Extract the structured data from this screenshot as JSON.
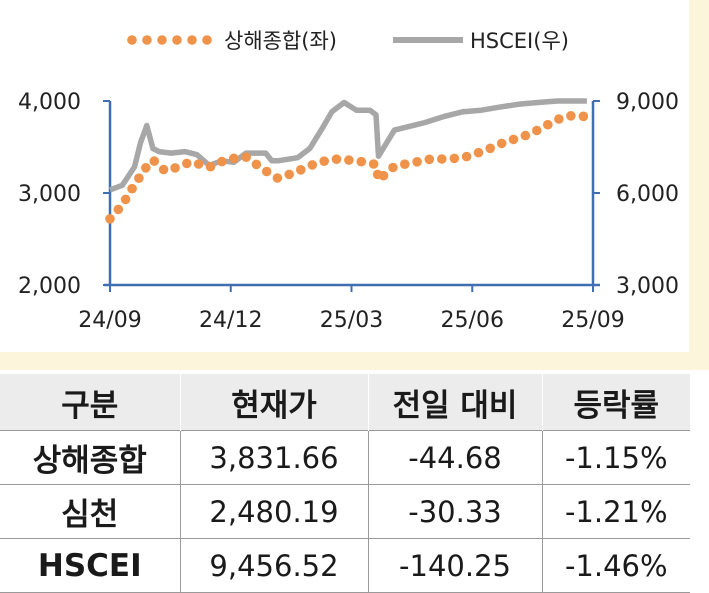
{
  "chart_data": {
    "type": "line",
    "legend": [
      "상해종합(좌)",
      "HSCEI(우)"
    ],
    "legend_position": "top",
    "x_tick_labels": [
      "24/09",
      "24/12",
      "25/03",
      "25/06",
      "25/09"
    ],
    "y_left_ticks": [
      "2,000",
      "3,000",
      "4,000"
    ],
    "y_right_ticks": [
      "3,000",
      "6,000",
      "9,000"
    ],
    "y_left_range": [
      2000,
      4000
    ],
    "y_right_range": [
      3000,
      9000
    ],
    "x_range": [
      "2024-09-01",
      "2025-09-30"
    ],
    "grid": false,
    "series": [
      {
        "name": "상해종합(좌)",
        "axis": "left",
        "style": "dotted",
        "color": "#f0934a",
        "x": [
          "2024-09-01",
          "2024-09-11",
          "2024-09-21",
          "2024-10-01",
          "2024-10-06",
          "2024-10-16",
          "2024-10-26",
          "2024-11-06",
          "2024-11-21",
          "2024-12-06",
          "2024-12-21",
          "2025-01-06",
          "2025-01-16",
          "2025-01-31",
          "2025-02-10",
          "2025-02-20",
          "2025-03-06",
          "2025-03-21",
          "2025-04-06",
          "2025-04-08",
          "2025-04-21",
          "2025-05-06",
          "2025-05-21",
          "2025-06-06",
          "2025-06-21",
          "2025-07-01",
          "2025-07-11",
          "2025-07-21",
          "2025-08-01",
          "2025-08-11",
          "2025-08-21",
          "2025-09-01",
          "2025-09-11",
          "2025-09-25"
        ],
        "y": [
          2720,
          2870,
          3090,
          3290,
          3360,
          3240,
          3280,
          3340,
          3280,
          3370,
          3390,
          3240,
          3160,
          3230,
          3290,
          3340,
          3370,
          3350,
          3310,
          3140,
          3290,
          3330,
          3370,
          3370,
          3400,
          3450,
          3500,
          3560,
          3600,
          3650,
          3720,
          3800,
          3840,
          3831.66
        ]
      },
      {
        "name": "HSCEI(우)",
        "axis": "right",
        "style": "solid",
        "color": "#a7a7a7",
        "x": [
          "2024-09-01",
          "2024-09-11",
          "2024-09-21",
          "2024-09-26",
          "2024-10-01",
          "2024-10-06",
          "2024-10-11",
          "2024-10-21",
          "2024-11-01",
          "2024-11-11",
          "2024-11-21",
          "2024-12-01",
          "2024-12-11",
          "2024-12-21",
          "2025-01-06",
          "2025-01-11",
          "2025-01-16",
          "2025-02-01",
          "2025-02-11",
          "2025-02-21",
          "2025-03-01",
          "2025-03-11",
          "2025-03-21",
          "2025-04-01",
          "2025-04-06",
          "2025-04-08",
          "2025-04-21",
          "2025-05-01",
          "2025-05-16",
          "2025-06-01",
          "2025-06-16",
          "2025-07-01",
          "2025-07-16",
          "2025-08-01",
          "2025-08-16",
          "2025-09-01",
          "2025-09-16",
          "2025-09-25"
        ],
        "y": [
          6100,
          6250,
          6850,
          7650,
          8200,
          7450,
          7350,
          7300,
          7350,
          7250,
          6900,
          7050,
          7000,
          7300,
          7300,
          7050,
          7050,
          7150,
          7450,
          8100,
          8650,
          8950,
          8700,
          8700,
          8550,
          7200,
          8050,
          8150,
          8300,
          8500,
          8650,
          8700,
          8800,
          8900,
          8950,
          9000,
          9100,
          9456.52
        ]
      }
    ]
  },
  "table": {
    "headers": [
      "구분",
      "현재가",
      "전일 대비",
      "등락률"
    ],
    "rows": [
      [
        "상해종합",
        "3,831.66",
        "-44.68",
        "-1.15%"
      ],
      [
        "심천",
        "2,480.19",
        "-30.33",
        "-1.21%"
      ],
      [
        "HSCEI",
        "9,456.52",
        "-140.25",
        "-1.46%"
      ]
    ]
  }
}
